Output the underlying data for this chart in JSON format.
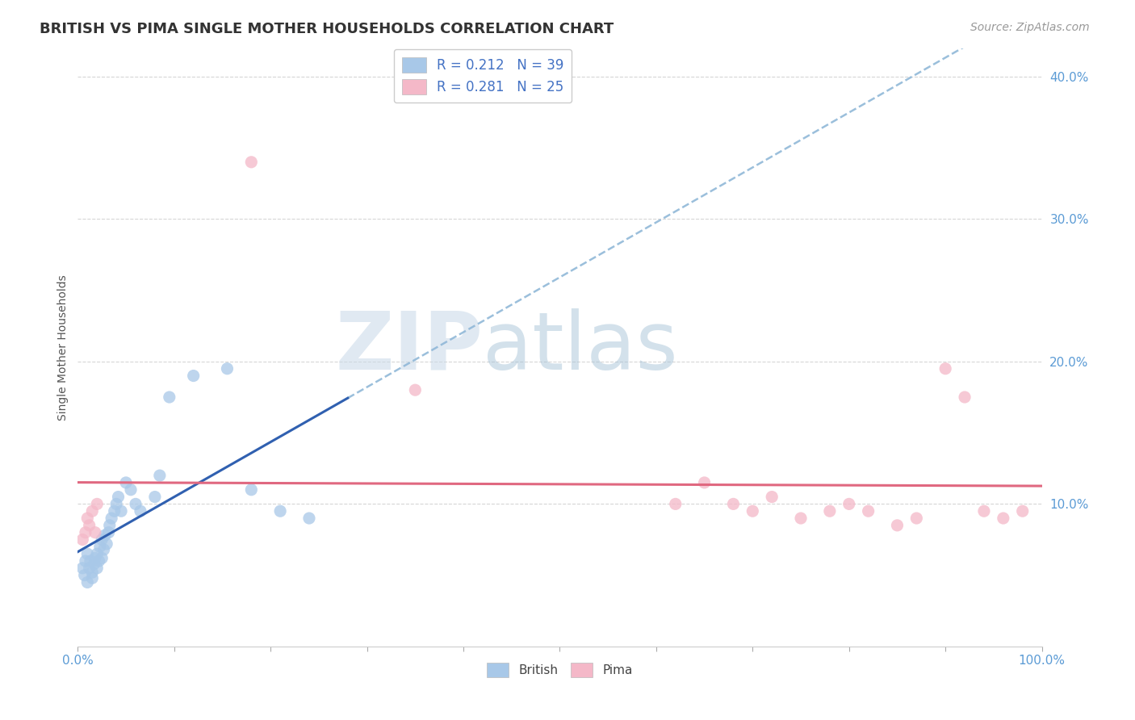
{
  "title": "BRITISH VS PIMA SINGLE MOTHER HOUSEHOLDS CORRELATION CHART",
  "source": "Source: ZipAtlas.com",
  "ylabel": "Single Mother Households",
  "xlim": [
    0,
    1.0
  ],
  "ylim": [
    0,
    0.42
  ],
  "ytick_positions": [
    0.1,
    0.2,
    0.3,
    0.4
  ],
  "grid_color": "#cccccc",
  "background_color": "#ffffff",
  "british_color": "#a8c8e8",
  "pima_color": "#f4b8c8",
  "british_line_color": "#3060b0",
  "pima_line_color": "#e06880",
  "dashed_line_color": "#90b8d8",
  "tick_label_color": "#5b9bd5",
  "legend_r_british": "R = 0.212",
  "legend_n_british": "N = 39",
  "legend_r_pima": "R = 0.281",
  "legend_n_pima": "N = 25",
  "british_x": [
    0.005,
    0.007,
    0.008,
    0.01,
    0.01,
    0.012,
    0.013,
    0.015,
    0.015,
    0.017,
    0.018,
    0.02,
    0.02,
    0.022,
    0.023,
    0.025,
    0.025,
    0.027,
    0.028,
    0.03,
    0.032,
    0.033,
    0.035,
    0.038,
    0.04,
    0.042,
    0.045,
    0.05,
    0.055,
    0.06,
    0.065,
    0.08,
    0.085,
    0.095,
    0.12,
    0.155,
    0.18,
    0.21,
    0.24
  ],
  "british_y": [
    0.055,
    0.05,
    0.06,
    0.045,
    0.065,
    0.055,
    0.06,
    0.048,
    0.052,
    0.058,
    0.062,
    0.055,
    0.065,
    0.06,
    0.07,
    0.062,
    0.075,
    0.068,
    0.078,
    0.072,
    0.08,
    0.085,
    0.09,
    0.095,
    0.1,
    0.105,
    0.095,
    0.115,
    0.11,
    0.1,
    0.095,
    0.105,
    0.12,
    0.175,
    0.19,
    0.195,
    0.11,
    0.095,
    0.09
  ],
  "pima_x": [
    0.005,
    0.008,
    0.01,
    0.012,
    0.015,
    0.018,
    0.02,
    0.35,
    0.18,
    0.62,
    0.65,
    0.68,
    0.7,
    0.72,
    0.75,
    0.78,
    0.8,
    0.82,
    0.85,
    0.87,
    0.9,
    0.92,
    0.94,
    0.96,
    0.98
  ],
  "pima_y": [
    0.075,
    0.08,
    0.09,
    0.085,
    0.095,
    0.08,
    0.1,
    0.18,
    0.34,
    0.1,
    0.115,
    0.1,
    0.095,
    0.105,
    0.09,
    0.095,
    0.1,
    0.095,
    0.085,
    0.09,
    0.195,
    0.175,
    0.095,
    0.09,
    0.095
  ],
  "watermark_zip_color": "#c8d8e8",
  "watermark_atlas_color": "#a8c0d8"
}
